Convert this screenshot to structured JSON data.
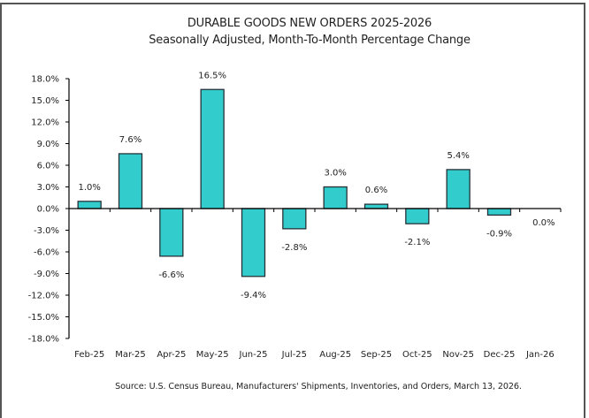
{
  "chart_data": {
    "type": "bar",
    "title": "DURABLE GOODS NEW ORDERS 2025-2026",
    "subtitle": "Seasonally Adjusted,  Month-To-Month Percentage Change",
    "xlabel": "",
    "ylabel": "",
    "categories": [
      "Feb-25",
      "Mar-25",
      "Apr-25",
      "May-25",
      "Jun-25",
      "Jul-25",
      "Aug-25",
      "Sep-25",
      "Oct-25",
      "Nov-25",
      "Dec-25",
      "Jan-26"
    ],
    "values": [
      1.0,
      7.6,
      -6.6,
      16.5,
      -9.4,
      -2.8,
      3.0,
      0.6,
      -2.1,
      5.4,
      -0.9,
      0.0
    ],
    "data_labels": [
      "1.0%",
      "7.6%",
      "-6.6%",
      "16.5%",
      "-9.4%",
      "-2.8%",
      "3.0%",
      "0.6%",
      "-2.1%",
      "5.4%",
      "-0.9%",
      "0.0%"
    ],
    "ylim": [
      -18,
      18
    ],
    "yticks": [
      18,
      15,
      12,
      9,
      6,
      3,
      0,
      -3,
      -6,
      -9,
      -12,
      -15,
      -18
    ],
    "ytick_labels": [
      "18.0%",
      "15.0%",
      "12.0%",
      "9.0%",
      "6.0%",
      "3.0%",
      "0.0%",
      "-3.0%",
      "-6.0%",
      "-9.0%",
      "-12.0%",
      "-15.0%",
      "-18.0%"
    ],
    "grid": false,
    "legend": "none",
    "bar_color": "#33CCCC",
    "bar_edge_color": "#263238",
    "source": "Source: U.S. Census Bureau, Manufacturers' Shipments, Inventories, and Orders, March 13, 2026."
  }
}
